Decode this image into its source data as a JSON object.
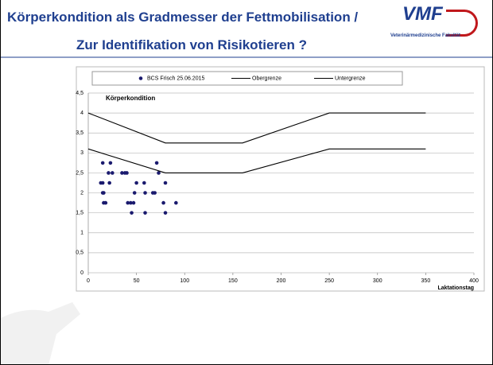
{
  "slide": {
    "title_line1": "Körperkondition als Gradmesser der Fettmobilisation /",
    "title_line2": "Zur Identifikation von Risikotieren ?",
    "logo": "VMF",
    "logo_subtitle": "Veterinärmedizinische Fakultät"
  },
  "chart_data": {
    "type": "scatter",
    "y_label": "Körperkondition",
    "x_label": "Laktationstag",
    "xlim": [
      0,
      400
    ],
    "xticks": [
      0,
      50,
      100,
      150,
      200,
      250,
      300,
      350,
      400
    ],
    "ylim": [
      0,
      4.5
    ],
    "yticks": [
      0,
      {
        "value": 0.5,
        "label": "0,5"
      },
      1,
      {
        "value": 1.5,
        "label": "1,5"
      },
      2,
      {
        "value": 2.5,
        "label": "2,5"
      },
      3,
      {
        "value": 3.5,
        "label": "3,5"
      },
      4,
      {
        "value": 4.5,
        "label": "4,5"
      }
    ],
    "grid": true,
    "legend": "top",
    "series": [
      {
        "name": "BCS Frisch 25.06.2015",
        "type": "scatter",
        "color": "#1a1a6e",
        "x": [
          15,
          23,
          15,
          13,
          16,
          15,
          16,
          18,
          21,
          25,
          22,
          35,
          38,
          40,
          41,
          44,
          45,
          47,
          48,
          50,
          58,
          59,
          59,
          67,
          69,
          71,
          73,
          78,
          80,
          80,
          91
        ],
        "values": [
          2.75,
          2.75,
          2.25,
          2.25,
          2,
          2,
          1.75,
          1.75,
          2.5,
          2.5,
          2.25,
          2.5,
          2.5,
          2.5,
          1.75,
          1.75,
          1.5,
          1.75,
          2,
          2.25,
          2.25,
          1.5,
          2,
          2,
          2,
          2.75,
          2.5,
          1.75,
          2.25,
          1.5,
          1.75
        ]
      },
      {
        "name": "Obergrenze",
        "type": "line",
        "color": "#000000",
        "x": [
          0,
          80,
          160,
          250,
          350
        ],
        "values": [
          4,
          3.25,
          3.25,
          4,
          4
        ]
      },
      {
        "name": "Untergrenze",
        "type": "line",
        "color": "#000000",
        "x": [
          0,
          80,
          160,
          250,
          350
        ],
        "values": [
          3.1,
          2.5,
          2.5,
          3.1,
          3.1
        ]
      }
    ]
  }
}
